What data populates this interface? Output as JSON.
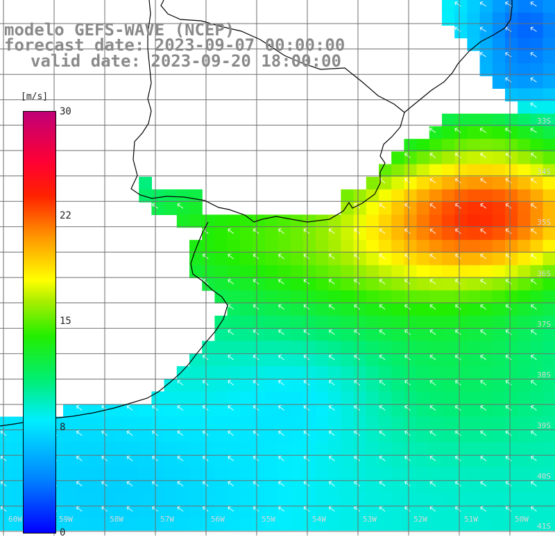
{
  "title": {
    "line1": "modelo GEFS-WAVE (NCEP)",
    "line2": "forecast date: 2023-09-07 00:00:00",
    "line3": "valid date: 2023-09-20 18:00:00"
  },
  "colorbar": {
    "units": "[m/s]",
    "ticks": [
      "30",
      "22",
      "15",
      "8",
      "0"
    ],
    "range": [
      0,
      30
    ],
    "colors": [
      "#0000ff",
      "#0088ff",
      "#00eeff",
      "#00ee77",
      "#22ee00",
      "#aaee00",
      "#ffff00",
      "#ff9900",
      "#ff2200",
      "#ff0033",
      "#c00077"
    ]
  },
  "lat_labels": [
    "33S",
    "34S",
    "35S",
    "36S",
    "37S",
    "38S",
    "39S",
    "40S",
    "41S"
  ],
  "lon_labels": [
    "60W",
    "59W",
    "58W",
    "57W",
    "56W",
    "55W",
    "54W",
    "53W",
    "52W",
    "51W",
    "50W"
  ],
  "colors": {
    "grid": "#6e6e6e",
    "coast": "#000000",
    "arrow": "#ffffff",
    "title": "#8a8a8a",
    "land": "#ffffff"
  }
}
